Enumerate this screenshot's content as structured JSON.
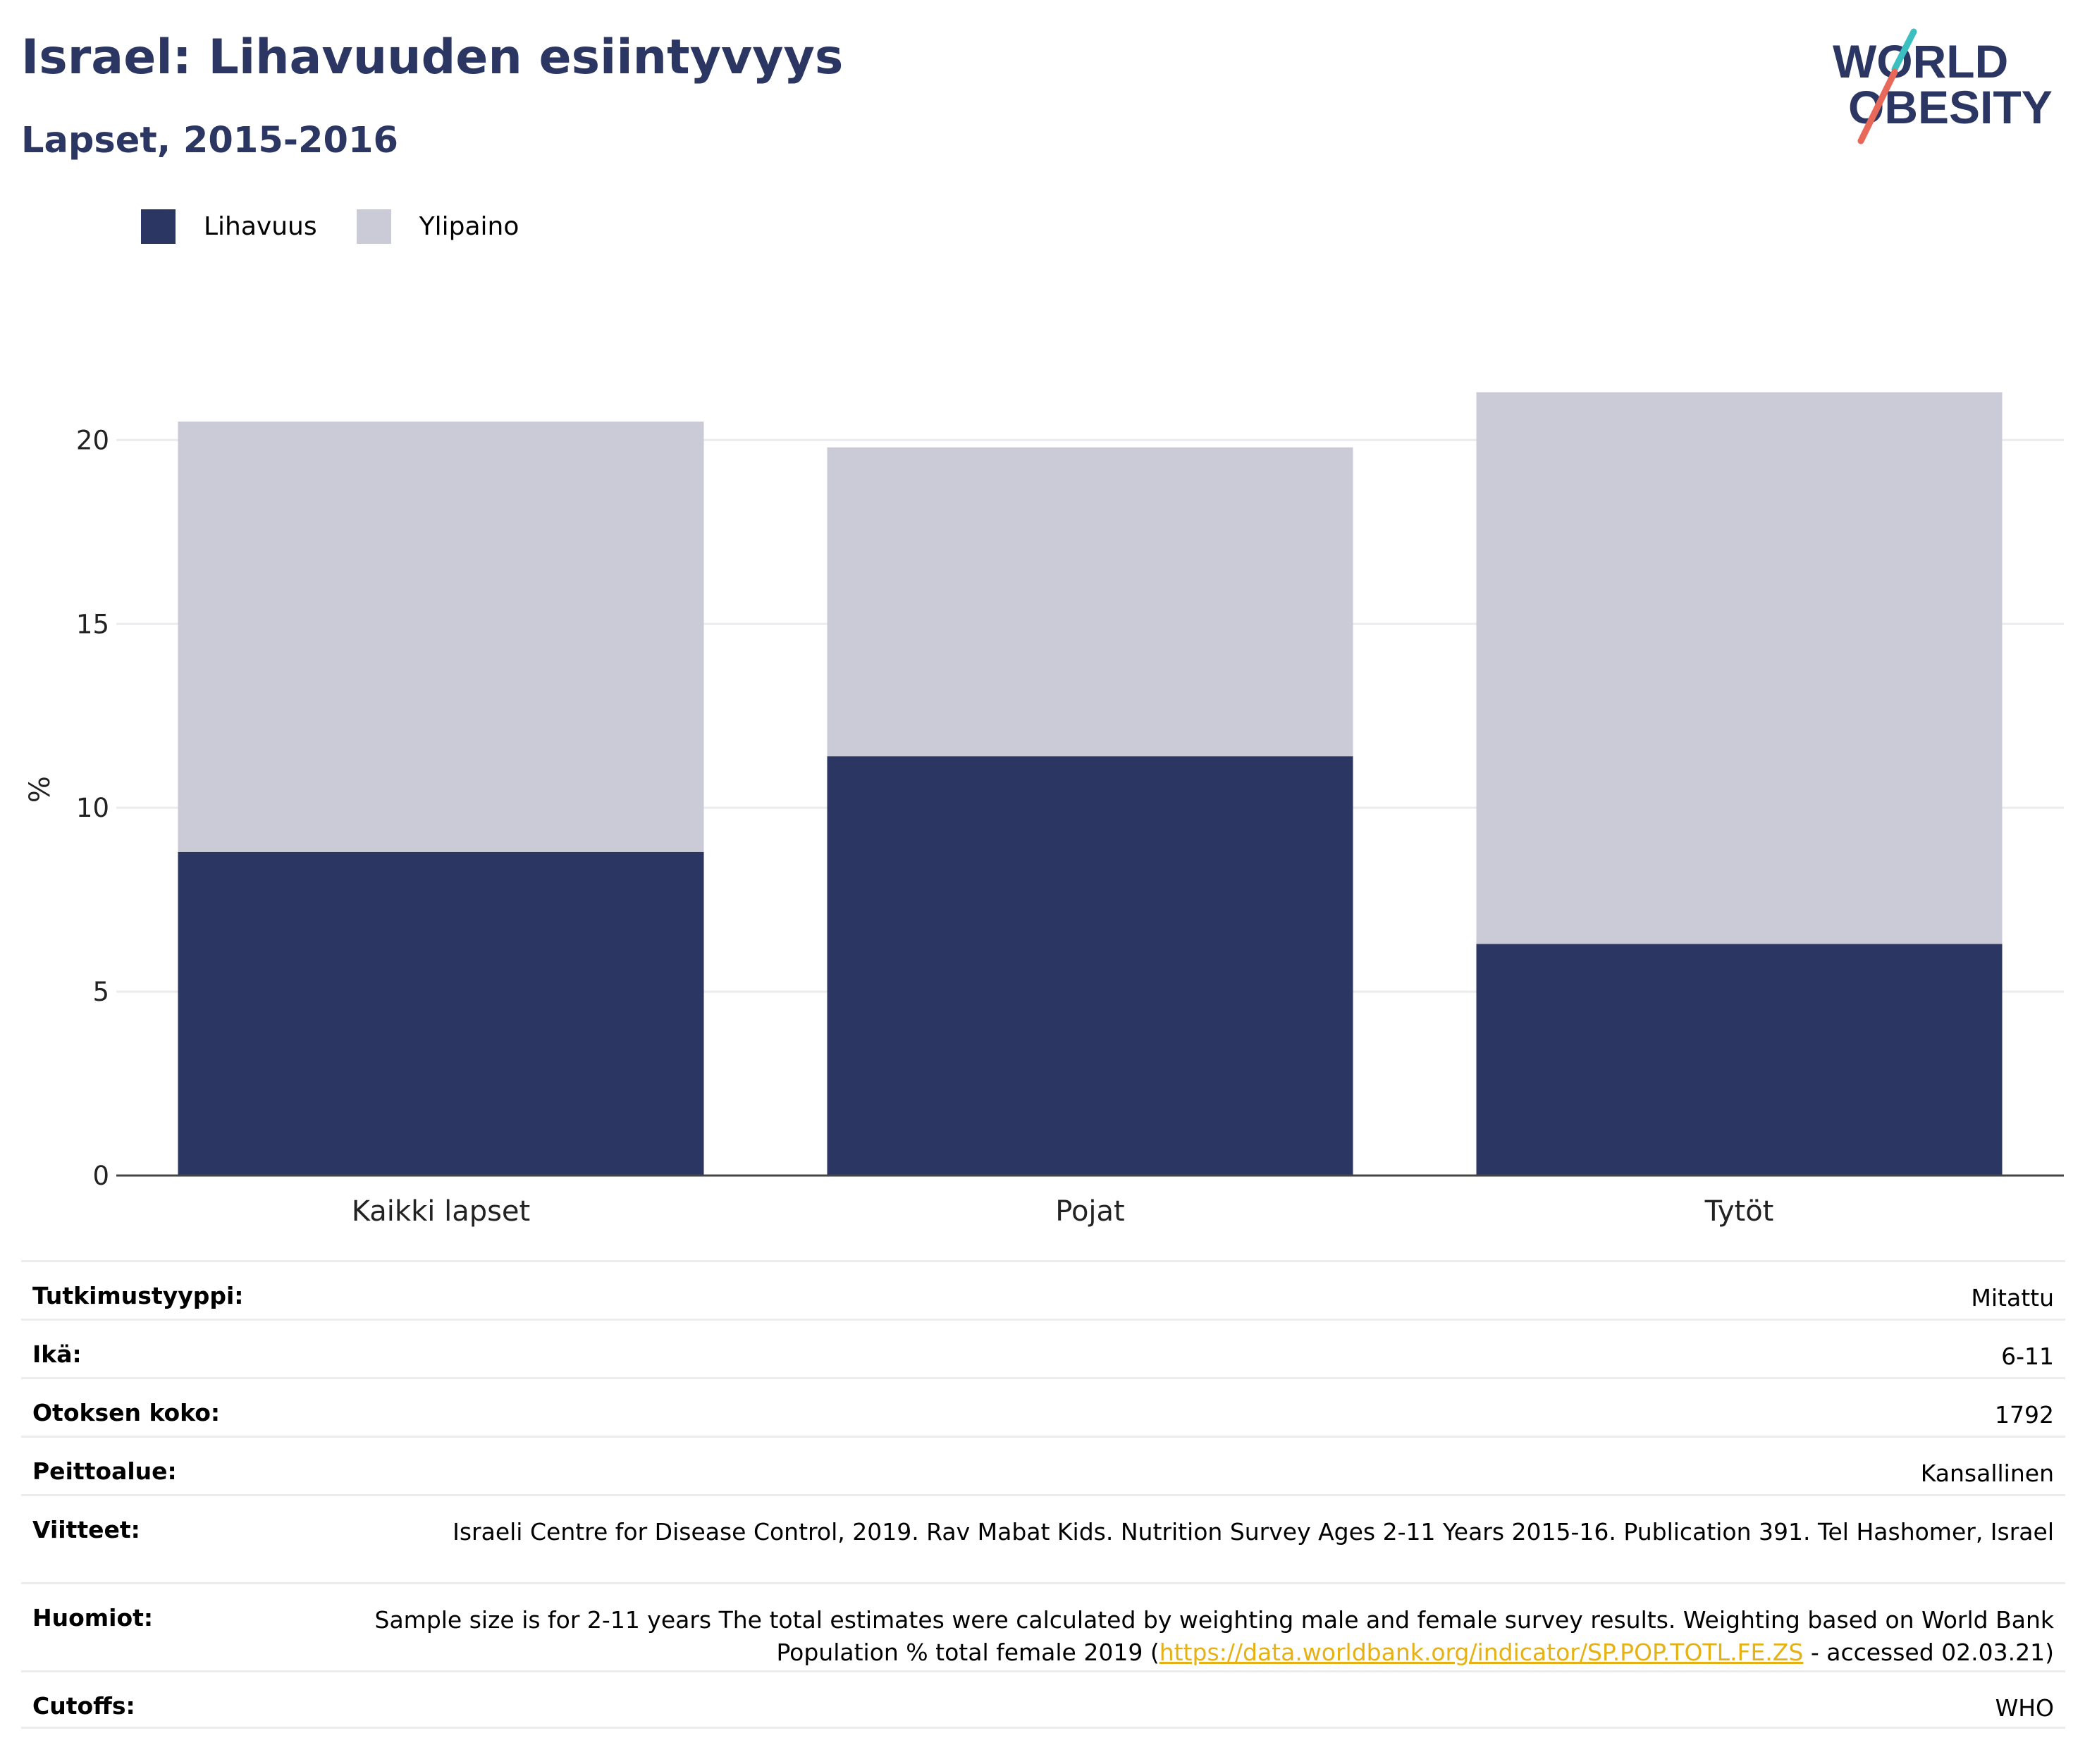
{
  "header": {
    "title": "Israel: Lihavuuden esiintyvyys",
    "subtitle": "Lapset, 2015-2016"
  },
  "logo": {
    "line1": "WORLD",
    "line2": "OBESITY",
    "text_color": "#2b3663",
    "accent_teal": "#3bbfc0",
    "accent_red": "#e8685a"
  },
  "legend": [
    {
      "label": "Lihavuus",
      "color": "#2b3663"
    },
    {
      "label": "Ylipaino",
      "color": "#cacbd6"
    }
  ],
  "chart_data": {
    "type": "bar",
    "stacked": true,
    "categories": [
      "Kaikki lapset",
      "Pojat",
      "Tytöt"
    ],
    "series": [
      {
        "name": "Lihavuus",
        "color": "#2b3663",
        "values": [
          8.8,
          11.4,
          6.3
        ]
      },
      {
        "name": "Ylipaino",
        "color": "#cacbd6",
        "values": [
          11.7,
          8.4,
          15.0
        ]
      }
    ],
    "ylabel": "%",
    "ylim": [
      0,
      22
    ],
    "yticks": [
      0,
      5,
      10,
      15,
      20
    ],
    "grid": true,
    "legend_position": "top-left"
  },
  "info": [
    {
      "label": "Tutkimustyyppi:",
      "value": "Mitattu"
    },
    {
      "label": "Ikä:",
      "value": "6-11"
    },
    {
      "label": "Otoksen koko:",
      "value": "1792"
    },
    {
      "label": "Peittoalue:",
      "value": "Kansallinen"
    },
    {
      "label": "Viitteet:",
      "value": "Israeli Centre for Disease Control, 2019. Rav Mabat Kids. Nutrition Survey Ages 2-11 Years 2015-16. Publication 391. Tel Hashomer, Israel"
    },
    {
      "label": "Huomiot:",
      "value_before": "Sample size is for 2-11 years The total estimates were calculated by weighting male and female survey results. Weighting based on World Bank Population % total female 2019 (",
      "link": "https://data.worldbank.org/indicator/SP.POP.TOTL.FE.ZS",
      "value_after": " - accessed 02.03.21)"
    },
    {
      "label": "Cutoffs:",
      "value": "WHO"
    }
  ]
}
